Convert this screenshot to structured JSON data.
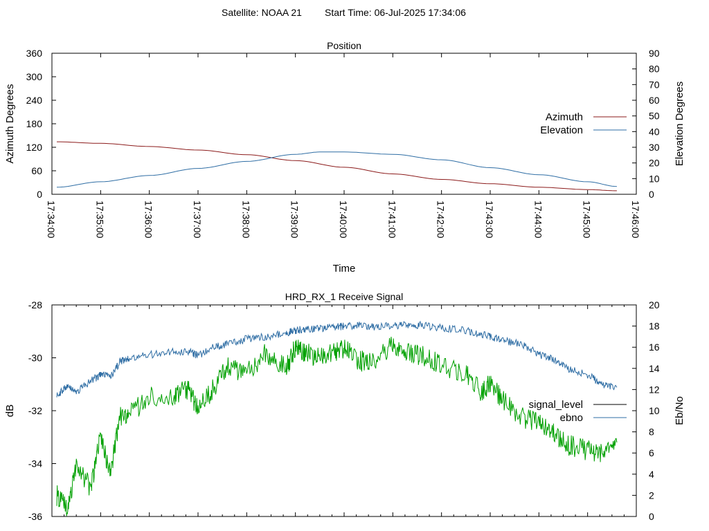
{
  "header": {
    "satellite_label": "Satellite: NOAA 21",
    "start_label": "Start Time: 06-Jul-2025 17:34:06"
  },
  "chart_data": [
    {
      "type": "line",
      "title": "Position",
      "xlabel": "Time",
      "ylabel_left": "Azimuth Degrees",
      "ylabel_right": "Elevation Degrees",
      "x_tick_labels": [
        "17:34:00",
        "17:35:00",
        "17:36:00",
        "17:37:00",
        "17:38:00",
        "17:39:00",
        "17:40:00",
        "17:41:00",
        "17:42:00",
        "17:43:00",
        "17:44:00",
        "17:45:00",
        "17:46:00"
      ],
      "y_left_ticks": [
        "0",
        "60",
        "120",
        "180",
        "240",
        "300",
        "360"
      ],
      "y_right_ticks": [
        "0",
        "10",
        "20",
        "30",
        "40",
        "50",
        "60",
        "70",
        "80",
        "90"
      ],
      "ylim_left": [
        0,
        360
      ],
      "ylim_right": [
        0,
        90
      ],
      "xlim_minutes": [
        0,
        12
      ],
      "grid": false,
      "legend_position": "right",
      "series": [
        {
          "name": "Azimuth",
          "axis": "left",
          "color": "#8b1a1a",
          "x_minutes": [
            0.1,
            1,
            2,
            3,
            4,
            5,
            6,
            7,
            8,
            9,
            10,
            11,
            11.6
          ],
          "values": [
            134,
            130,
            122,
            113,
            101,
            86,
            69,
            52,
            38,
            27,
            18,
            12,
            9
          ]
        },
        {
          "name": "Elevation",
          "axis": "right",
          "color": "#2e6da4",
          "x_minutes": [
            0.1,
            1,
            2,
            3,
            4,
            5,
            5.5,
            6,
            7,
            8,
            9,
            10,
            11,
            11.6
          ],
          "values": [
            4.5,
            8,
            12,
            16.5,
            21,
            25.5,
            27,
            27,
            25.5,
            22,
            17,
            12.5,
            8,
            5
          ]
        }
      ]
    },
    {
      "type": "line",
      "title": "HRD_RX_1 Receive Signal",
      "ylabel_left": "dB",
      "ylabel_right": "Eb/No",
      "y_left_ticks": [
        "-36",
        "-34",
        "-32",
        "-30",
        "-28"
      ],
      "y_right_ticks": [
        "0",
        "2",
        "4",
        "6",
        "8",
        "10",
        "12",
        "14",
        "16",
        "18",
        "20"
      ],
      "ylim_left": [
        -36,
        -28
      ],
      "ylim_right": [
        0,
        20
      ],
      "xlim_minutes": [
        0,
        12
      ],
      "grid": false,
      "legend_position": "right",
      "series": [
        {
          "name": "signal_level",
          "axis": "left",
          "color": "#00a000",
          "legend_color": "#000000",
          "x_minutes": [
            0.1,
            0.3,
            0.5,
            0.8,
            1.0,
            1.2,
            1.4,
            1.6,
            2.0,
            2.5,
            2.8,
            3.0,
            3.3,
            3.6,
            4.0,
            4.4,
            4.8,
            5.0,
            5.2,
            5.5,
            5.8,
            6.0,
            6.3,
            6.6,
            7.0,
            7.3,
            7.6,
            8.0,
            8.5,
            8.8,
            9.0,
            9.3,
            9.7,
            10.0,
            10.3,
            10.6,
            11.0,
            11.3,
            11.6
          ],
          "values": [
            -35.2,
            -35.7,
            -34.2,
            -34.9,
            -33.0,
            -34.4,
            -32.2,
            -32.1,
            -31.5,
            -31.4,
            -31.2,
            -31.9,
            -31.2,
            -30.3,
            -30.6,
            -29.8,
            -30.4,
            -29.6,
            -29.8,
            -30.0,
            -29.8,
            -29.6,
            -30.1,
            -30.2,
            -29.5,
            -29.8,
            -29.9,
            -30.3,
            -30.6,
            -31.3,
            -31.0,
            -31.7,
            -32.3,
            -32.4,
            -32.8,
            -33.3,
            -33.5,
            -33.6,
            -33.2
          ]
        },
        {
          "name": "ebno",
          "axis": "right",
          "color": "#2e6da4",
          "x_minutes": [
            0.1,
            0.3,
            0.5,
            0.8,
            1.0,
            1.2,
            1.4,
            1.6,
            2.0,
            2.5,
            2.8,
            3.0,
            3.3,
            3.6,
            4.0,
            4.4,
            4.8,
            5.0,
            5.2,
            5.5,
            5.8,
            6.0,
            6.3,
            6.6,
            7.0,
            7.3,
            7.6,
            8.0,
            8.5,
            8.8,
            9.0,
            9.3,
            9.7,
            10.0,
            10.3,
            10.6,
            11.0,
            11.3,
            11.6
          ],
          "values": [
            11.5,
            12.2,
            11.8,
            12.8,
            13.4,
            13.2,
            14.6,
            15.0,
            15.3,
            15.6,
            15.6,
            15.2,
            16.0,
            16.3,
            16.8,
            17.0,
            17.3,
            17.6,
            17.7,
            17.8,
            17.9,
            18.0,
            18.1,
            17.9,
            18.0,
            18.1,
            18.1,
            17.8,
            17.6,
            17.2,
            17.0,
            16.6,
            16.2,
            15.3,
            14.9,
            14.0,
            13.4,
            12.5,
            12.2
          ]
        }
      ]
    }
  ]
}
